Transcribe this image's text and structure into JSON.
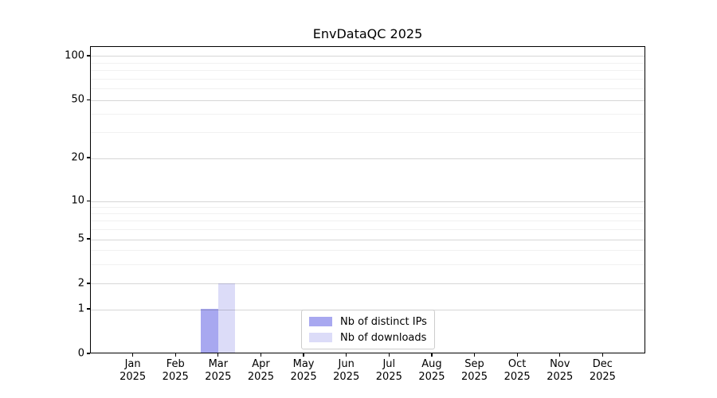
{
  "chart_data": {
    "type": "bar",
    "title": "EnvDataQC 2025",
    "x": {
      "categories": [
        "Jan",
        "Feb",
        "Mar",
        "Apr",
        "May",
        "Jun",
        "Jul",
        "Aug",
        "Sep",
        "Oct",
        "Nov",
        "Dec"
      ],
      "year_label": "2025"
    },
    "series": [
      {
        "name": "Nb of distinct IPs",
        "color": "#a8a8f0",
        "values": [
          0,
          0,
          1,
          0,
          0,
          0,
          0,
          0,
          0,
          0,
          0,
          0
        ]
      },
      {
        "name": "Nb of downloads",
        "color": "#dcdcf8",
        "values": [
          0,
          0,
          2,
          0,
          0,
          0,
          0,
          0,
          0,
          0,
          0,
          0
        ]
      }
    ],
    "y_axis": {
      "scale": "symlog",
      "major_ticks": [
        0,
        1,
        2,
        5,
        10,
        20,
        50,
        100
      ],
      "minor_ticks": [
        3,
        4,
        6,
        7,
        8,
        9,
        30,
        40,
        60,
        70,
        80,
        90
      ]
    },
    "legend": {
      "position": "lower-center"
    },
    "grid": {
      "major": true,
      "minor": true
    }
  },
  "colors": {
    "background": "#ffffff",
    "spine": "#000000",
    "major_grid": "rgba(0,0,0,0.16)",
    "minor_grid": "rgba(0,0,0,0.055)",
    "text": "#000000"
  }
}
